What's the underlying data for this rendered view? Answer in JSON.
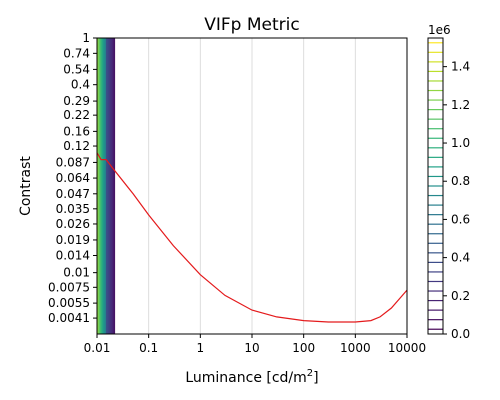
{
  "chart_data": {
    "type": "contour",
    "title": "VIFp Metric",
    "xlabel": "Luminance [cd/m",
    "xlabel_sup": "2",
    "xlabel_tail": "]",
    "ylabel": "Contrast",
    "x_scale": "log",
    "y_scale": "log",
    "xlim": [
      0.01,
      10000
    ],
    "ylim": [
      0.003,
      1
    ],
    "x_ticks": [
      0.01,
      0.1,
      1,
      10,
      100,
      1000,
      10000
    ],
    "x_tick_labels": [
      "0.01",
      "0.1",
      "1",
      "10",
      "100",
      "1000",
      "10000"
    ],
    "y_tick_labels": [
      "1",
      "0.74",
      "0.54",
      "0.4",
      "0.29",
      "0.22",
      "0.16",
      "0.12",
      "0.087",
      "0.064",
      "0.047",
      "0.035",
      "0.026",
      "0.019",
      "0.014",
      "0.01",
      "0.0075",
      "0.0055",
      "0.0041"
    ],
    "grid": "vertical",
    "contour_band_x": [
      0.01,
      0.022
    ],
    "threshold_line": {
      "color": "#e41a1c",
      "x": [
        0.01,
        0.012,
        0.015,
        0.02,
        0.05,
        0.1,
        0.3,
        1,
        3,
        10,
        30,
        100,
        300,
        1000,
        2000,
        3000,
        5000,
        10000
      ],
      "y": [
        0.105,
        0.092,
        0.092,
        0.078,
        0.047,
        0.031,
        0.017,
        0.0096,
        0.0064,
        0.0048,
        0.0042,
        0.0039,
        0.0038,
        0.0038,
        0.0039,
        0.0042,
        0.005,
        0.0071
      ]
    },
    "colorbar": {
      "multiplier": "1e6",
      "min": 0,
      "max": 1.55,
      "tick_values": [
        0,
        0.2,
        0.4,
        0.6,
        0.8,
        1.0,
        1.2,
        1.4
      ],
      "tick_labels": [
        "0.0",
        "0.2",
        "0.4",
        "0.6",
        "0.8",
        "1.0",
        "1.2",
        "1.4"
      ],
      "levels": 31,
      "colormap": "viridis"
    }
  }
}
